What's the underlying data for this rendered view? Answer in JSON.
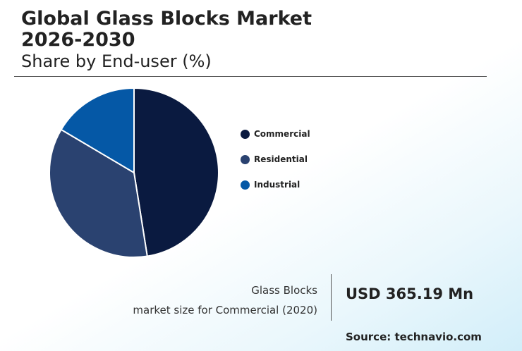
{
  "header": {
    "title_line1": "Global Glass Blocks Market",
    "title_line2": "2026-2030",
    "subtitle": "Share by End-user (%)"
  },
  "chart_data": {
    "type": "pie",
    "categories": [
      "Commercial",
      "Residential",
      "Industrial"
    ],
    "values": [
      47.5,
      36.0,
      16.5
    ],
    "colors": [
      "#0a1a40",
      "#2a4270",
      "#0558a6"
    ],
    "legend_placement": "right"
  },
  "market_size": {
    "label_line1": "Glass Blocks",
    "label_line2": "market size for Commercial (2020)",
    "value": "USD 365.19 Mn"
  },
  "source": "Source: technavio.com"
}
